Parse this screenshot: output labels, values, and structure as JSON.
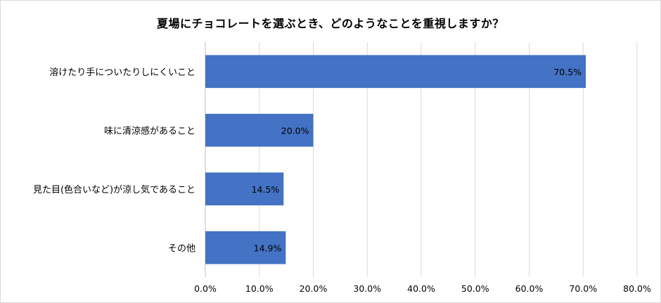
{
  "chart_data": {
    "type": "bar",
    "orientation": "horizontal",
    "title": "夏場にチョコレートを選ぶとき、どのようなことを重視しますか？",
    "categories": [
      "溶けたり手についたりしにくいこと",
      "味に清涼感があること",
      "見た目(色合いなど)が涼し気であること",
      "その他"
    ],
    "values": [
      70.5,
      20.0,
      14.5,
      14.9
    ],
    "data_labels": [
      "70.5%",
      "20.0%",
      "14.5%",
      "14.9%"
    ],
    "xlim": [
      0,
      80
    ],
    "xticks": [
      0,
      10,
      20,
      30,
      40,
      50,
      60,
      70,
      80
    ],
    "xtick_labels": [
      "0.0%",
      "10.0%",
      "20.0%",
      "30.0%",
      "40.0%",
      "50.0%",
      "60.0%",
      "70.0%",
      "80.0%"
    ],
    "grid": true,
    "legend": false,
    "bar_color": "#4472c4",
    "grid_color": "#d9d9d9"
  }
}
